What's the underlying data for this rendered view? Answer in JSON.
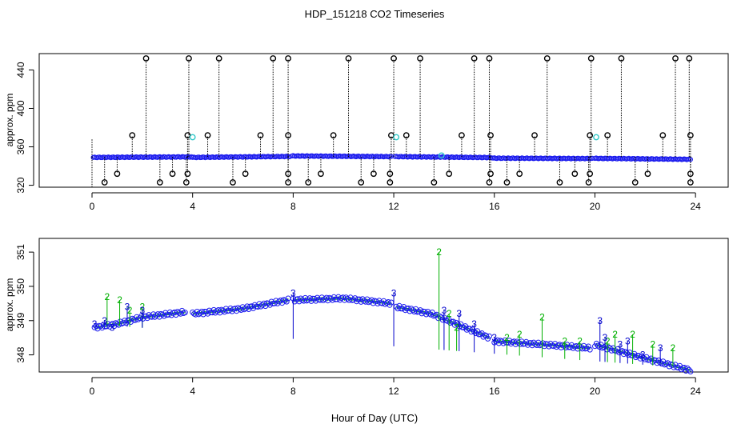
{
  "title": "HDP_151218  CO2 Timeseries",
  "xlabel": "Hour of Day (UTC)",
  "chart_data": [
    {
      "type": "scatter",
      "ylabel": "approx. ppm",
      "xlim": [
        -2.1,
        25.3
      ],
      "ylim": [
        318,
        457
      ],
      "x_ticks": [
        0,
        4,
        8,
        12,
        16,
        20,
        24
      ],
      "y_ticks": [
        320,
        360,
        400,
        440
      ],
      "baseline_segments": [
        {
          "x0": 0.05,
          "x1": 3.95,
          "y0": 349.0,
          "y1": 349.5
        },
        {
          "x0": 4.0,
          "x1": 7.85,
          "y0": 349.0,
          "y1": 350.0
        },
        {
          "x0": 7.95,
          "x1": 11.9,
          "y0": 350.5,
          "y1": 349.8
        },
        {
          "x0": 12.05,
          "x1": 15.9,
          "y0": 349.8,
          "y1": 348.8
        },
        {
          "x0": 15.95,
          "x1": 19.9,
          "y0": 348.2,
          "y1": 347.8
        },
        {
          "x0": 20.0,
          "x1": 23.8,
          "y0": 348.0,
          "y1": 347.0
        }
      ],
      "spikes_high": [
        2.15,
        3.85,
        5.05,
        7.2,
        7.8,
        10.2,
        12.0,
        13.05,
        15.2,
        15.8,
        18.1,
        19.85,
        21.05,
        23.2,
        23.75
      ],
      "spikes_mid": [
        1.6,
        3.8,
        4.6,
        6.7,
        7.8,
        9.6,
        11.9,
        12.5,
        14.7,
        15.85,
        17.6,
        19.8,
        20.5,
        22.7,
        23.8
      ],
      "spikes_low1": [
        0.5,
        2.7,
        3.75,
        5.6,
        7.8,
        8.6,
        10.7,
        11.85,
        13.6,
        15.8,
        16.5,
        18.6,
        19.75,
        21.6,
        23.8
      ],
      "spikes_low2": [
        1.0,
        3.2,
        3.8,
        6.1,
        7.8,
        9.1,
        11.2,
        11.85,
        14.2,
        15.85,
        17.0,
        19.2,
        19.8,
        22.1,
        23.8
      ],
      "cyan_points": [
        {
          "x": 4.0,
          "y": 370
        },
        {
          "x": 12.1,
          "y": 370
        },
        {
          "x": 20.05,
          "y": 370
        },
        {
          "x": 13.9,
          "y": 351
        }
      ]
    },
    {
      "type": "scatter",
      "ylabel": "approx. ppm",
      "xlim": [
        -2.1,
        25.3
      ],
      "ylim": [
        347.5,
        351.4
      ],
      "x_ticks": [
        0,
        4,
        8,
        12,
        16,
        20,
        24
      ],
      "y_ticks": [
        348,
        349,
        350,
        351
      ],
      "series": [
        {
          "name": "2",
          "color": "#00b000",
          "points": [
            {
              "x": 0.6,
              "y": 349.7
            },
            {
              "x": 1.1,
              "y": 349.6
            },
            {
              "x": 1.5,
              "y": 349.3
            },
            {
              "x": 2.0,
              "y": 349.4
            },
            {
              "x": 13.8,
              "y": 351.0
            },
            {
              "x": 14.2,
              "y": 349.2
            },
            {
              "x": 14.5,
              "y": 348.8
            },
            {
              "x": 16.5,
              "y": 348.5
            },
            {
              "x": 17.0,
              "y": 348.6
            },
            {
              "x": 17.9,
              "y": 349.1
            },
            {
              "x": 18.8,
              "y": 348.4
            },
            {
              "x": 19.4,
              "y": 348.4
            },
            {
              "x": 20.5,
              "y": 348.4
            },
            {
              "x": 20.8,
              "y": 348.6
            },
            {
              "x": 21.5,
              "y": 348.6
            },
            {
              "x": 22.3,
              "y": 348.3
            },
            {
              "x": 23.1,
              "y": 348.2
            }
          ]
        },
        {
          "name": "3",
          "color": "#0000cc",
          "points": [
            {
              "x": 0.1,
              "y": 348.9
            },
            {
              "x": 0.5,
              "y": 349.0
            },
            {
              "x": 0.8,
              "y": 348.8
            },
            {
              "x": 1.4,
              "y": 349.4
            },
            {
              "x": 2.0,
              "y": 349.3
            },
            {
              "x": 8.0,
              "y": 349.8
            },
            {
              "x": 12.0,
              "y": 349.8
            },
            {
              "x": 14.0,
              "y": 349.3
            },
            {
              "x": 14.6,
              "y": 349.2
            },
            {
              "x": 15.2,
              "y": 348.9
            },
            {
              "x": 16.0,
              "y": 348.5
            },
            {
              "x": 20.2,
              "y": 349.0
            },
            {
              "x": 20.4,
              "y": 348.5
            },
            {
              "x": 21.0,
              "y": 348.3
            },
            {
              "x": 21.3,
              "y": 348.4
            },
            {
              "x": 21.9,
              "y": 348.0
            },
            {
              "x": 22.6,
              "y": 348.2
            }
          ]
        }
      ],
      "trend_segments": [
        {
          "x": [
            0.1,
            1.0,
            2.0,
            3.7
          ],
          "y": [
            348.8,
            348.9,
            349.1,
            349.25
          ]
        },
        {
          "x": [
            4.0,
            6.0,
            7.8
          ],
          "y": [
            349.2,
            349.35,
            349.6
          ]
        },
        {
          "x": [
            8.0,
            10.0,
            11.9
          ],
          "y": [
            349.6,
            349.65,
            349.5
          ]
        },
        {
          "x": [
            12.1,
            13.5,
            14.5,
            15.8
          ],
          "y": [
            349.4,
            349.2,
            348.9,
            348.5
          ]
        },
        {
          "x": [
            16.0,
            18.0,
            19.8
          ],
          "y": [
            348.4,
            348.3,
            348.2
          ]
        },
        {
          "x": [
            20.0,
            22.0,
            23.8
          ],
          "y": [
            348.3,
            347.9,
            347.55
          ]
        }
      ]
    }
  ]
}
